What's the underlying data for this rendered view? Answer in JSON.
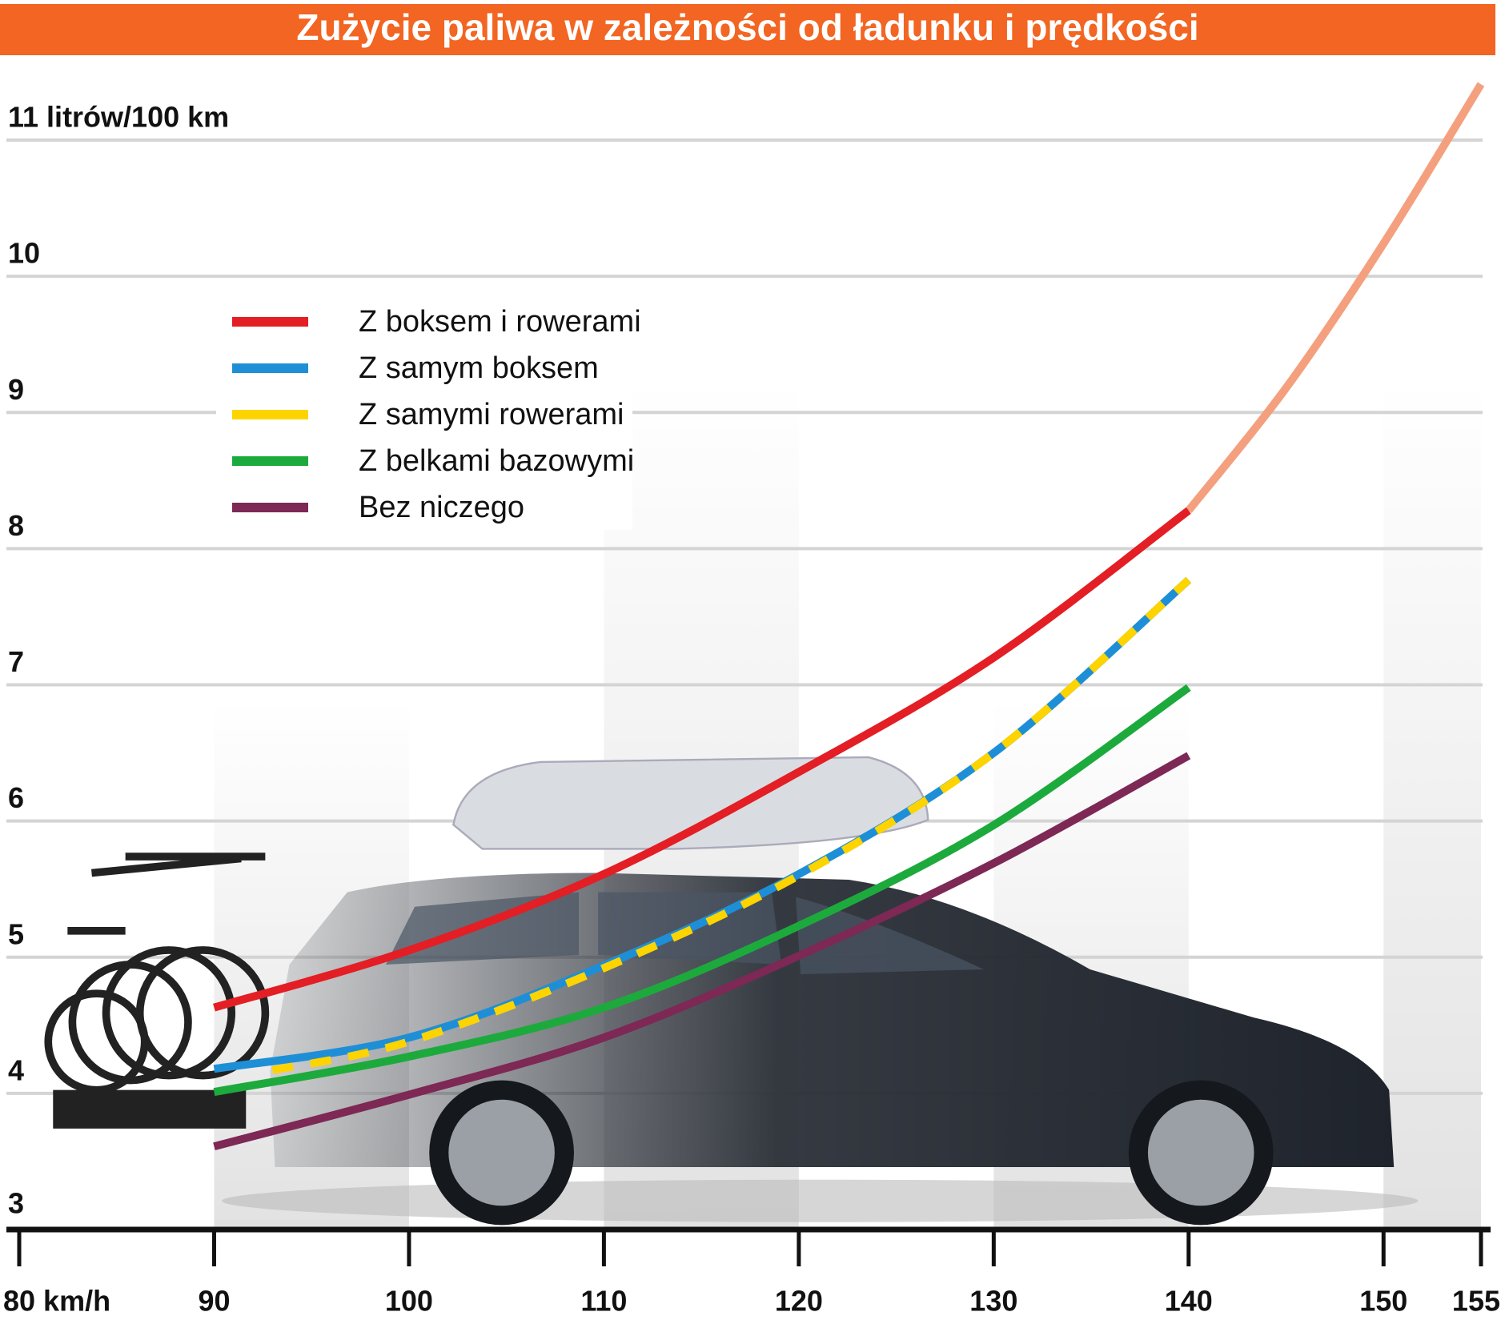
{
  "chart_data": {
    "type": "line",
    "title": "Zużycie paliwa w zależności od ładunku i prędkości",
    "x": [
      90,
      100,
      110,
      120,
      130,
      140
    ],
    "xlim": [
      80,
      155
    ],
    "xticks": [
      {
        "value": 80,
        "label": "80 km/h"
      },
      90,
      100,
      110,
      120,
      130,
      140,
      150,
      155
    ],
    "ylim": [
      3,
      11
    ],
    "yticks": [
      3,
      4,
      5,
      6,
      7,
      8,
      9,
      10,
      {
        "value": 11,
        "label": "11 litrów/100 km"
      }
    ],
    "grid": true,
    "series": [
      {
        "name": "Z boksem i rowerami",
        "color": "#e31e24",
        "values": [
          4.63,
          5.05,
          5.61,
          6.36,
          7.2,
          8.28
        ],
        "projection": {
          "x": [
            140,
            145,
            150,
            155
          ],
          "values": [
            8.28,
            9.18,
            10.24,
            11.41
          ],
          "color": "#f4a07e"
        }
      },
      {
        "name": "Z samym boksem",
        "color": "#1e8fd6",
        "values": [
          4.18,
          4.41,
          4.94,
          5.61,
          6.5,
          7.77
        ]
      },
      {
        "name": "Z samymi rowerami",
        "color": "#fdd400",
        "dashed": true,
        "x": [
          93,
          100,
          110,
          120,
          130,
          140
        ],
        "values": [
          4.17,
          4.38,
          4.92,
          5.6,
          6.5,
          7.77
        ]
      },
      {
        "name": "Z belkami bazowymi",
        "color": "#1daa3c",
        "values": [
          4.01,
          4.27,
          4.63,
          5.23,
          5.97,
          6.98
        ]
      },
      {
        "name": "Bez niczego",
        "color": "#7d2855",
        "values": [
          3.61,
          3.99,
          4.41,
          5.01,
          5.69,
          6.48
        ]
      }
    ]
  }
}
